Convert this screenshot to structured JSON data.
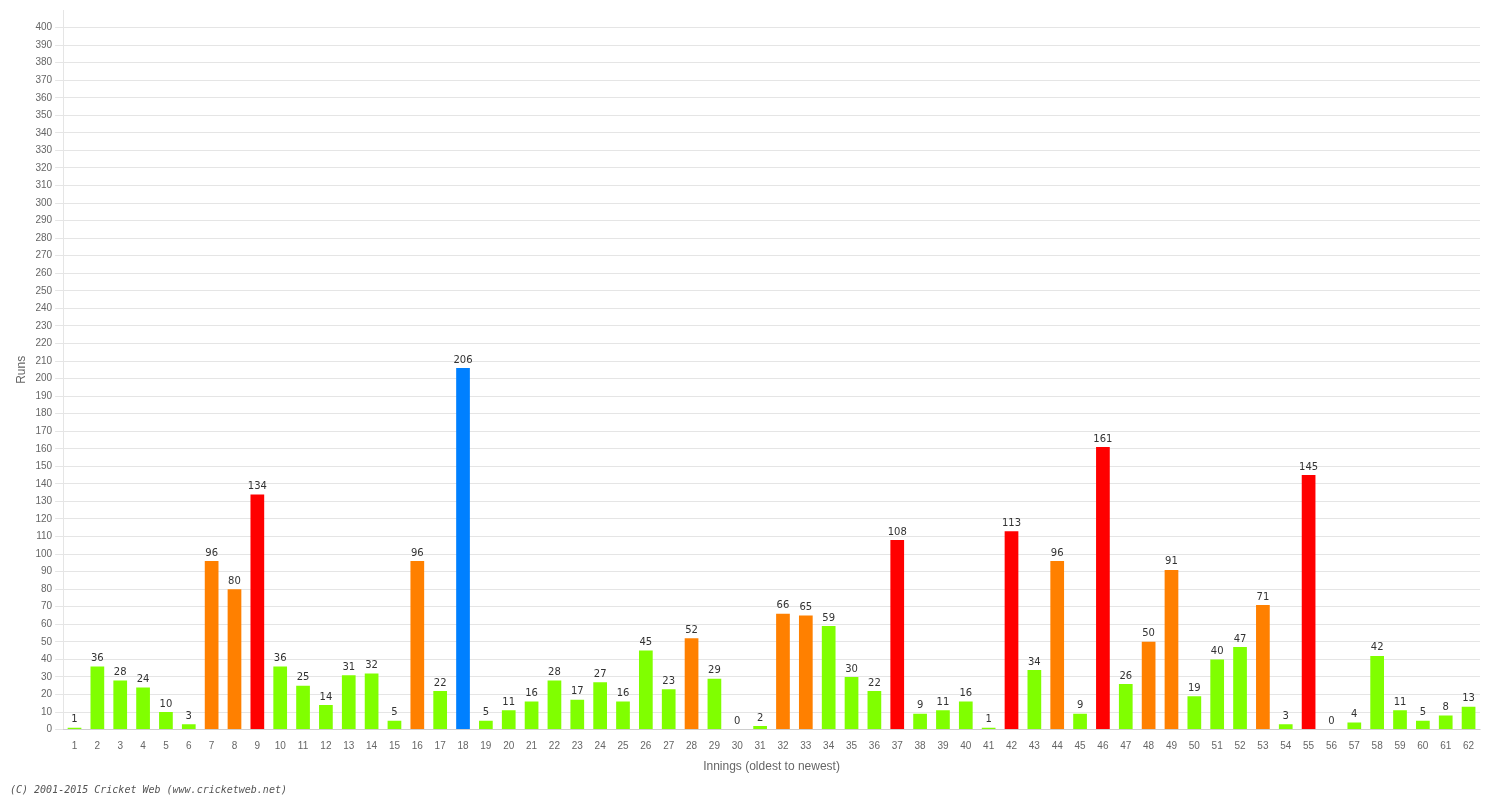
{
  "chart_data": {
    "type": "bar",
    "xlabel": "Innings (oldest to newest)",
    "ylabel": "Runs",
    "categories": [
      "1",
      "2",
      "3",
      "4",
      "5",
      "6",
      "7",
      "8",
      "9",
      "10",
      "11",
      "12",
      "13",
      "14",
      "15",
      "16",
      "17",
      "18",
      "19",
      "20",
      "21",
      "22",
      "23",
      "24",
      "25",
      "26",
      "27",
      "28",
      "29",
      "30",
      "31",
      "32",
      "33",
      "34",
      "35",
      "36",
      "37",
      "38",
      "39",
      "40",
      "41",
      "42",
      "43",
      "44",
      "45",
      "46",
      "47",
      "48",
      "49",
      "50",
      "51",
      "52",
      "53",
      "54",
      "55",
      "56",
      "57",
      "58",
      "59",
      "60",
      "61",
      "62"
    ],
    "values": [
      1,
      36,
      28,
      24,
      10,
      3,
      96,
      80,
      134,
      36,
      25,
      14,
      31,
      32,
      5,
      96,
      22,
      206,
      5,
      11,
      16,
      28,
      17,
      27,
      16,
      45,
      23,
      52,
      29,
      0,
      2,
      66,
      65,
      59,
      30,
      22,
      108,
      9,
      11,
      16,
      1,
      113,
      34,
      96,
      9,
      161,
      26,
      50,
      91,
      19,
      40,
      47,
      71,
      3,
      145,
      0,
      4,
      42,
      11,
      5,
      8,
      13
    ],
    "colors": [
      "#80ff00",
      "#80ff00",
      "#80ff00",
      "#80ff00",
      "#80ff00",
      "#80ff00",
      "#ff8000",
      "#ff8000",
      "#ff0000",
      "#80ff00",
      "#80ff00",
      "#80ff00",
      "#80ff00",
      "#80ff00",
      "#80ff00",
      "#ff8000",
      "#80ff00",
      "#0080ff",
      "#80ff00",
      "#80ff00",
      "#80ff00",
      "#80ff00",
      "#80ff00",
      "#80ff00",
      "#80ff00",
      "#80ff00",
      "#80ff00",
      "#ff8000",
      "#80ff00",
      "#80ff00",
      "#80ff00",
      "#ff8000",
      "#ff8000",
      "#80ff00",
      "#80ff00",
      "#80ff00",
      "#ff0000",
      "#80ff00",
      "#80ff00",
      "#80ff00",
      "#80ff00",
      "#ff0000",
      "#80ff00",
      "#ff8000",
      "#80ff00",
      "#ff0000",
      "#80ff00",
      "#ff8000",
      "#ff8000",
      "#80ff00",
      "#80ff00",
      "#80ff00",
      "#ff8000",
      "#80ff00",
      "#ff0000",
      "#80ff00",
      "#80ff00",
      "#80ff00",
      "#80ff00",
      "#80ff00",
      "#80ff00",
      "#80ff00"
    ],
    "ylim": [
      0,
      410
    ],
    "yticks": [
      0,
      10,
      20,
      30,
      40,
      50,
      60,
      70,
      80,
      90,
      100,
      110,
      120,
      130,
      140,
      150,
      160,
      170,
      180,
      190,
      200,
      210,
      220,
      230,
      240,
      250,
      260,
      270,
      280,
      290,
      300,
      310,
      320,
      330,
      340,
      350,
      360,
      370,
      380,
      390,
      400
    ],
    "grid": true,
    "data_labels": true,
    "annotations": [
      "(C) 2001-2015 Cricket Web (www.cricketweb.net)"
    ]
  }
}
